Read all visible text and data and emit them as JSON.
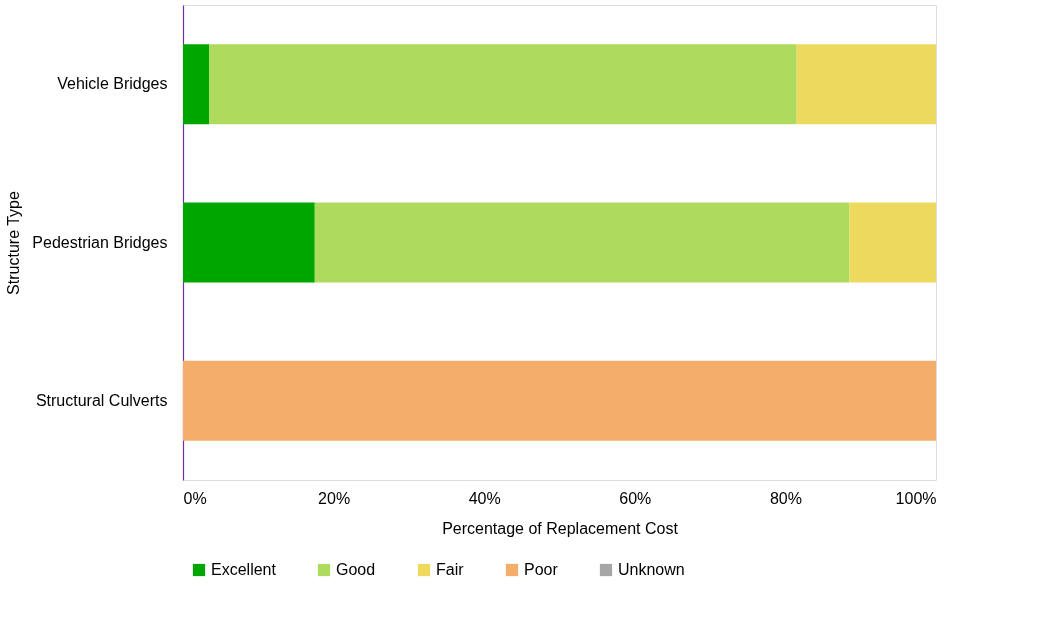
{
  "chart_data": {
    "type": "bar",
    "orientation": "horizontal",
    "stacked": true,
    "xlabel": "Percentage of Replacement Cost",
    "ylabel": "Structure Type",
    "categories": [
      "Vehicle Bridges",
      "Pedestrian Bridges",
      "Structural Culverts"
    ],
    "series": [
      {
        "name": "Excellent",
        "color": "#00a600",
        "values": [
          3.5,
          17.5,
          null
        ]
      },
      {
        "name": "Good",
        "color": "#aedb5e",
        "values": [
          78,
          71,
          null
        ]
      },
      {
        "name": "Fair",
        "color": "#eed95f",
        "values": [
          18.5,
          11.5,
          null
        ]
      },
      {
        "name": "Poor",
        "color": "#f5ad6b",
        "values": [
          null,
          null,
          100
        ]
      },
      {
        "name": "Unknown",
        "color": "#a6a6a6",
        "values": [
          null,
          null,
          null
        ]
      }
    ],
    "xlim": [
      0,
      100
    ],
    "xticks": [
      {
        "value": 0,
        "label": "0%"
      },
      {
        "value": 20,
        "label": "20%"
      },
      {
        "value": 40,
        "label": "40%"
      },
      {
        "value": 60,
        "label": "60%"
      },
      {
        "value": 80,
        "label": "80%"
      },
      {
        "value": 100,
        "label": "100%"
      }
    ],
    "grid": false,
    "legend": "bottom"
  }
}
